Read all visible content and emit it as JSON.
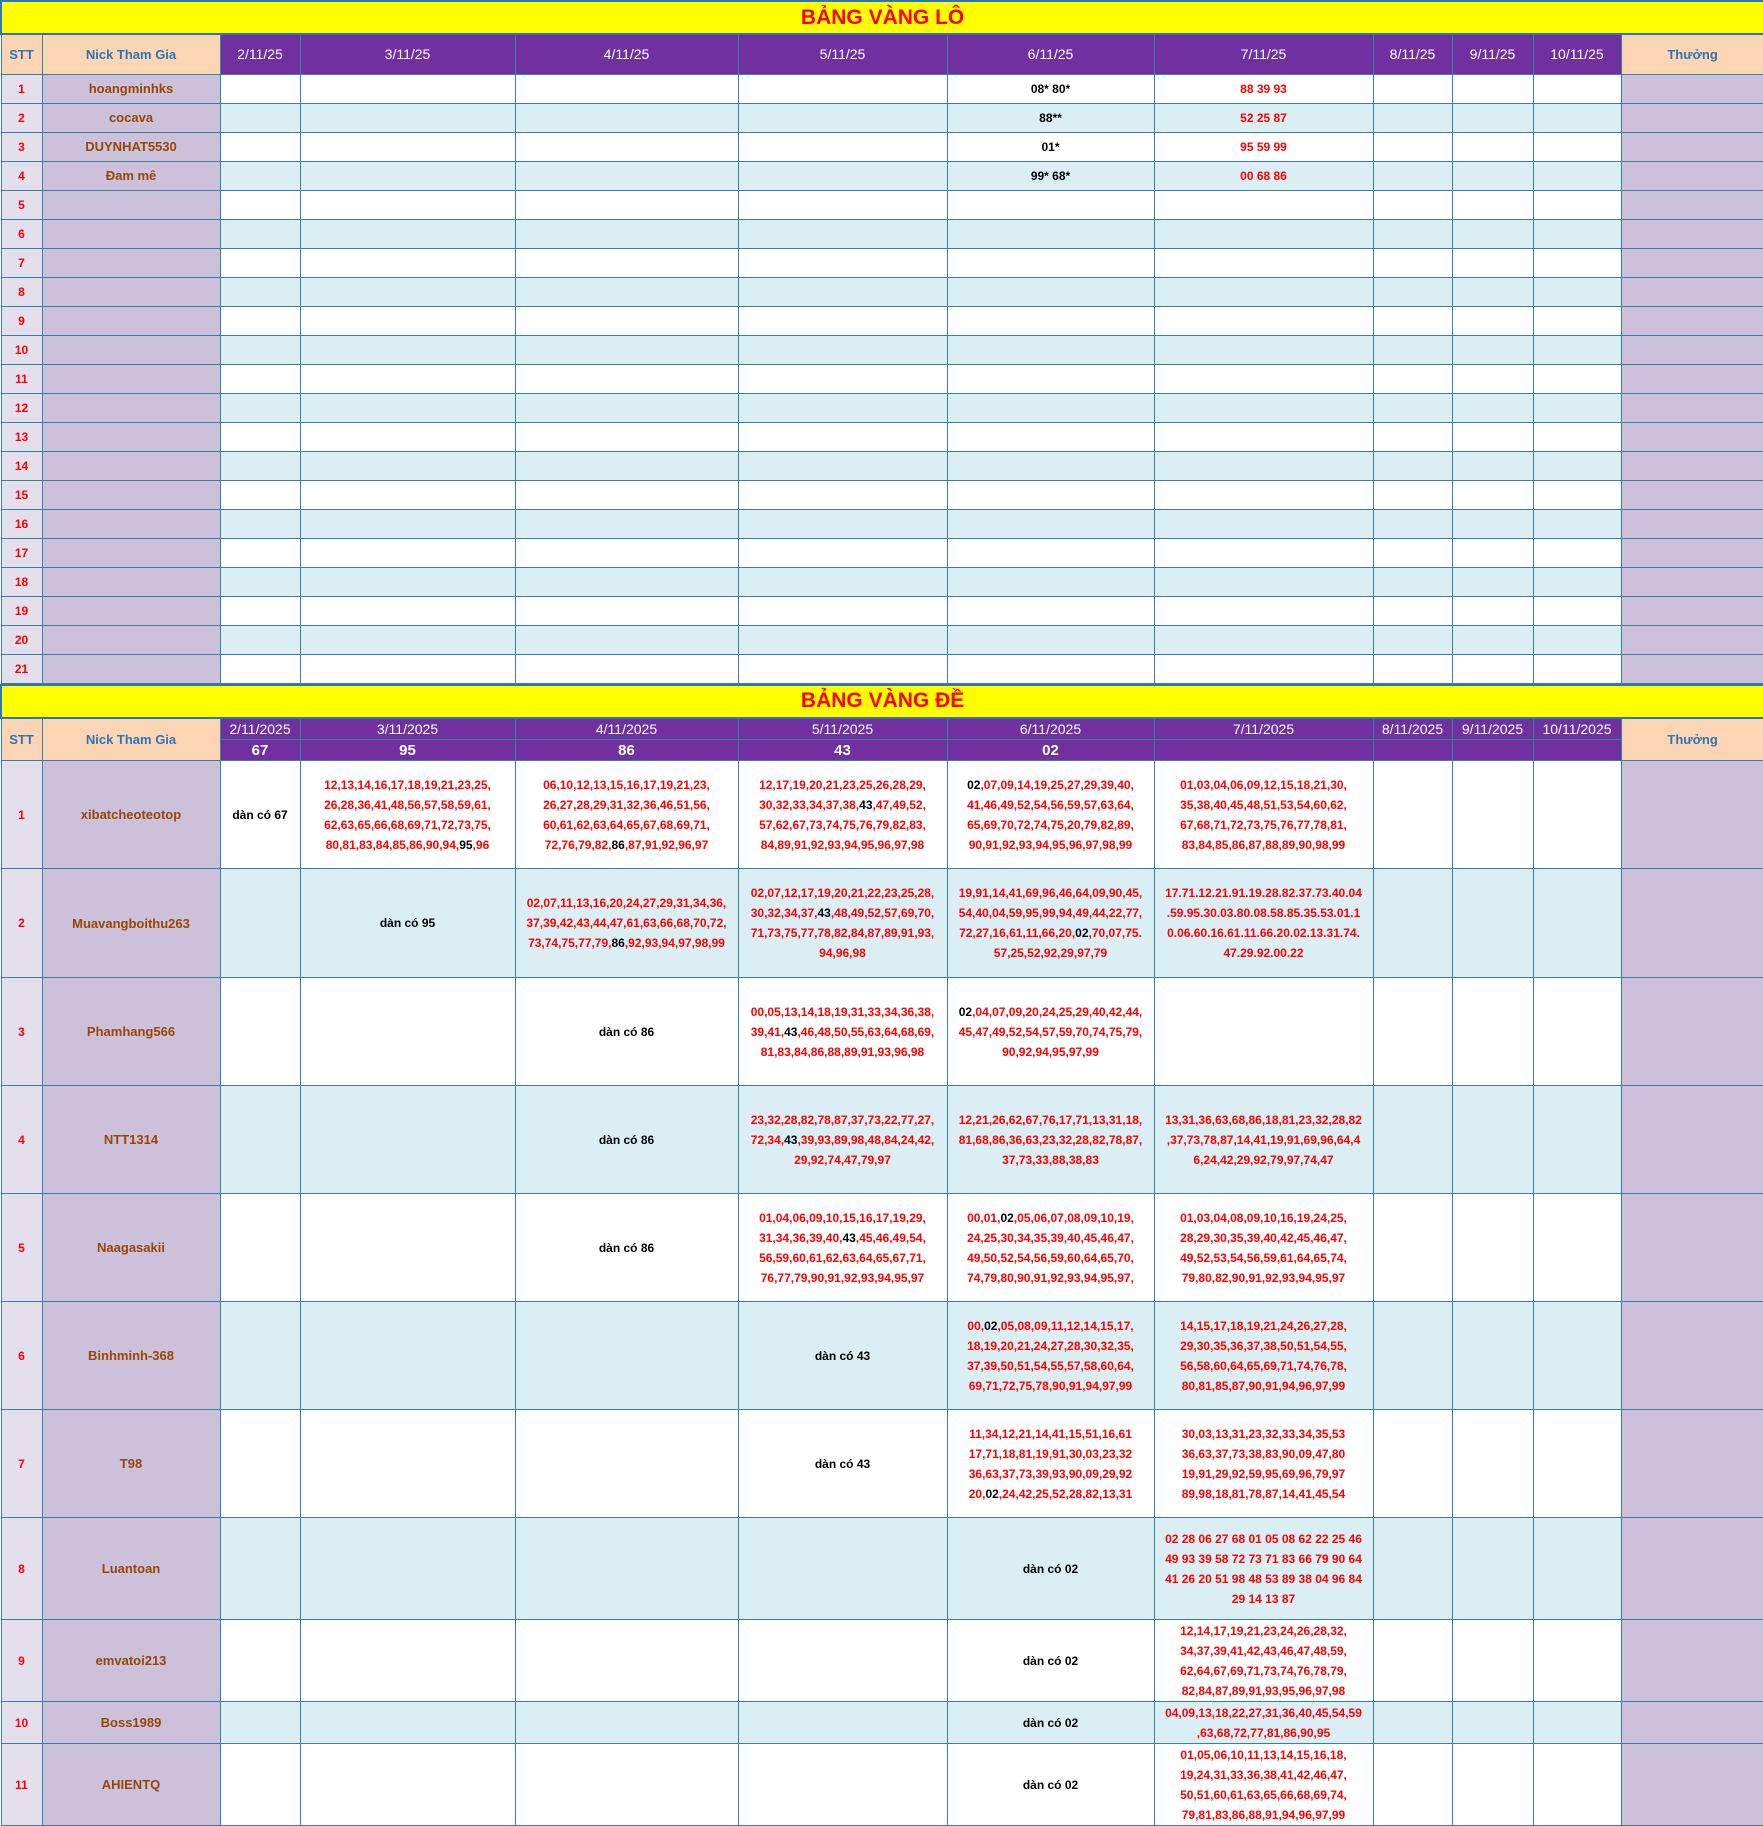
{
  "lo": {
    "title": "BẢNG VÀNG LÔ",
    "headers": [
      "STT",
      "Nick Tham Gia",
      "2/11/25",
      "3/11/25",
      "4/11/25",
      "5/11/25",
      "6/11/25",
      "7/11/25",
      "8/11/25",
      "9/11/25",
      "10/11/25",
      "Thưởng"
    ],
    "rows": [
      {
        "stt": "1",
        "nick": "hoangminhks",
        "d6": "08* 80*",
        "d7": "88 39 93"
      },
      {
        "stt": "2",
        "nick": "cocava",
        "d6": "88**",
        "d7": "52 25 87"
      },
      {
        "stt": "3",
        "nick": "DUYNHAT5530",
        "d6": "01*",
        "d7": "95 59 99"
      },
      {
        "stt": "4",
        "nick": "Đam mê",
        "d6": "99* 68*",
        "d7": "00 68 86"
      },
      {
        "stt": "5"
      },
      {
        "stt": "6"
      },
      {
        "stt": "7"
      },
      {
        "stt": "8"
      },
      {
        "stt": "9"
      },
      {
        "stt": "10"
      },
      {
        "stt": "11"
      },
      {
        "stt": "12"
      },
      {
        "stt": "13"
      },
      {
        "stt": "14"
      },
      {
        "stt": "15"
      },
      {
        "stt": "16"
      },
      {
        "stt": "17"
      },
      {
        "stt": "18"
      },
      {
        "stt": "19"
      },
      {
        "stt": "20"
      },
      {
        "stt": "21"
      }
    ]
  },
  "de": {
    "title": "BẢNG VÀNG ĐỀ",
    "stt_label": "STT",
    "nick_label": "Nick Tham Gia",
    "bonus_label": "Thưởng",
    "dates": [
      "2/11/2025",
      "3/11/2025",
      "4/11/2025",
      "5/11/2025",
      "6/11/2025",
      "7/11/2025",
      "8/11/2025",
      "9/11/2025",
      "10/11/2025"
    ],
    "results": [
      "67",
      "95",
      "86",
      "43",
      "02",
      "",
      "",
      "",
      ""
    ],
    "rows": [
      {
        "stt": "1",
        "nick": "xibatcheoteotop",
        "cells": [
          {
            "text": "dàn có 67"
          },
          {
            "lines": [
              "12,13,14,16,17,18,19,21,23,25,",
              "26,28,36,41,48,56,57,58,59,61,",
              "62,63,65,66,68,69,71,72,73,75,",
              "80,81,83,84,85,86,90,94,95,96"
            ],
            "hit": "95"
          },
          {
            "lines": [
              "06,10,12,13,15,16,17,19,21,23,",
              "26,27,28,29,31,32,36,46,51,56,",
              "60,61,62,63,64,65,67,68,69,71,",
              "72,76,79,82,86,87,91,92,96,97"
            ],
            "hit": "86"
          },
          {
            "lines": [
              "12,17,19,20,21,23,25,26,28,29,",
              "30,32,33,34,37,38,43,47,49,52,",
              "57,62,67,73,74,75,76,79,82,83,",
              "84,89,91,92,93,94,95,96,97,98"
            ],
            "hit": "43"
          },
          {
            "lines": [
              "02,07,09,14,19,25,27,29,39,40,",
              "41,46,49,52,54,56,59,57,63,64,",
              "65,69,70,72,74,75,20,79,82,89,",
              "90,91,92,93,94,95,96,97,98,99"
            ],
            "hit": "02"
          },
          {
            "lines": [
              "01,03,04,06,09,12,15,18,21,30,",
              "35,38,40,45,48,51,53,54,60,62,",
              "67,68,71,72,73,75,76,77,78,81,",
              "83,84,85,86,87,88,89,90,98,99"
            ]
          }
        ]
      },
      {
        "stt": "2",
        "nick": "Muavangboithu263",
        "cells": [
          {},
          {
            "text": "dàn có 95"
          },
          {
            "lines": [
              "02,07,11,13,16,20,24,27,29,31,34,36,",
              "37,39,42,43,44,47,61,63,66,68,70,72,",
              "73,74,75,77,79,86,92,93,94,97,98,99"
            ],
            "hit": "86"
          },
          {
            "lines": [
              "02,07,12,17,19,20,21,22,23,25,28,",
              "30,32,34,37,43,48,49,52,57,69,70,",
              "71,73,75,77,78,82,84,87,89,91,93,",
              "94,96,98"
            ],
            "hit": "43"
          },
          {
            "lines": [
              "19,91,14,41,69,96,46,64,09,90,45,",
              "54,40,04,59,95,99,94,49,44,22,77,",
              "72,27,16,61,11,66,20,02,70,07,75.",
              "57,25,52,92,29,97,79"
            ],
            "hit": "02"
          },
          {
            "lines": [
              "17.71.12.21.91.19.28.82.37.73.40.04",
              ".59.95.30.03.80.08.58.85.35.53.01.1",
              "0.06.60.16.61.11.66.20.02.13.31.74.",
              "47.29.92.00.22"
            ]
          }
        ]
      },
      {
        "stt": "3",
        "nick": "Phamhang566",
        "cells": [
          {},
          {},
          {
            "text": "dàn có 86"
          },
          {
            "lines": [
              "00,05,13,14,18,19,31,33,34,36,38,",
              "39,41,43,46,48,50,55,63,64,68,69,",
              "81,83,84,86,88,89,91,93,96,98"
            ],
            "hit": "43"
          },
          {
            "lines": [
              "02,04,07,09,20,24,25,29,40,42,44,",
              "45,47,49,52,54,57,59,70,74,75,79,",
              "90,92,94,95,97,99"
            ],
            "hit": "02"
          },
          {}
        ]
      },
      {
        "stt": "4",
        "nick": "NTT1314",
        "cells": [
          {},
          {},
          {
            "text": "dàn có 86"
          },
          {
            "lines": [
              "23,32,28,82,78,87,37,73,22,77,27,",
              "72,34,43,39,93,89,98,48,84,24,42,",
              "29,92,74,47,79,97"
            ],
            "hit": "43"
          },
          {
            "lines": [
              "12,21,26,62,67,76,17,71,13,31,18,",
              "81,68,86,36,63,23,32,28,82,78,87,",
              "37,73,33,88,38,83"
            ]
          },
          {
            "lines": [
              "13,31,36,63,68,86,18,81,23,32,28,82",
              ",37,73,78,87,14,41,19,91,69,96,64,4",
              "6,24,42,29,92,79,97,74,47"
            ]
          }
        ]
      },
      {
        "stt": "5",
        "nick": "Naagasakii",
        "cells": [
          {},
          {},
          {
            "text": "dàn có 86"
          },
          {
            "lines": [
              "01,04,06,09,10,15,16,17,19,29,",
              "31,34,36,39,40,43,45,46,49,54,",
              "56,59,60,61,62,63,64,65,67,71,",
              "76,77,79,90,91,92,93,94,95,97"
            ],
            "hit": "43"
          },
          {
            "lines": [
              "00,01,02,05,06,07,08,09,10,19,",
              "24,25,30,34,35,39,40,45,46,47,",
              "49,50,52,54,56,59,60,64,65,70,",
              "74,79,80,90,91,92,93,94,95,97,"
            ],
            "hit": "02"
          },
          {
            "lines": [
              "01,03,04,08,09,10,16,19,24,25,",
              "28,29,30,35,39,40,42,45,46,47,",
              "49,52,53,54,56,59,61,64,65,74,",
              "79,80,82,90,91,92,93,94,95,97"
            ]
          }
        ]
      },
      {
        "stt": "6",
        "nick": "Binhminh-368",
        "cells": [
          {},
          {},
          {},
          {
            "text": "dàn có 43"
          },
          {
            "lines": [
              "00,02,05,08,09,11,12,14,15,17,",
              "18,19,20,21,24,27,28,30,32,35,",
              "37,39,50,51,54,55,57,58,60,64,",
              "69,71,72,75,78,90,91,94,97,99"
            ],
            "hit": "02"
          },
          {
            "lines": [
              "14,15,17,18,19,21,24,26,27,28,",
              "29,30,35,36,37,38,50,51,54,55,",
              "56,58,60,64,65,69,71,74,76,78,",
              "80,81,85,87,90,91,94,96,97,99"
            ]
          }
        ]
      },
      {
        "stt": "7",
        "nick": "T98",
        "cells": [
          {},
          {},
          {},
          {
            "text": "dàn có 43"
          },
          {
            "lines": [
              "11,34,12,21,14,41,15,51,16,61",
              "17,71,18,81,19,91,30,03,23,32",
              "36,63,37,73,39,93,90,09,29,92",
              "20,02,24,42,25,52,28,82,13,31"
            ],
            "hit": "02"
          },
          {
            "lines": [
              "30,03,13,31,23,32,33,34,35,53",
              "36,63,37,73,38,83,90,09,47,80",
              "19,91,29,92,59,95,69,96,79,97",
              "89,98,18,81,78,87,14,41,45,54"
            ]
          }
        ]
      },
      {
        "stt": "8",
        "nick": "Luantoan",
        "cells": [
          {},
          {},
          {},
          {},
          {
            "text": "dàn có 02"
          },
          {
            "lines": [
              "02 28 06 27 68 01 05 08 62 22 25 46",
              "49 93 39 58 72 73 71 83 66 79 90 64",
              "41 26 20 51 98 48 53 89 38 04 96 84",
              "29 14 13 87"
            ]
          }
        ]
      },
      {
        "stt": "9",
        "nick": "emvatoi213",
        "cells": [
          {},
          {},
          {},
          {},
          {
            "text": "dàn có 02"
          },
          {
            "lines": [
              "12,14,17,19,21,23,24,26,28,32,",
              "34,37,39,41,42,43,46,47,48,59,",
              "62,64,67,69,71,73,74,76,78,79,",
              "82,84,87,89,91,93,95,96,97,98"
            ]
          }
        ]
      },
      {
        "stt": "10",
        "nick": "Boss1989",
        "cells": [
          {},
          {},
          {},
          {},
          {
            "text": "dàn có 02"
          },
          {
            "lines": [
              "04,09,13,18,22,27,31,36,40,45,54,59",
              ",63,68,72,77,81,86,90,95"
            ]
          }
        ]
      },
      {
        "stt": "11",
        "nick": "AHIENTQ",
        "cells": [
          {},
          {},
          {},
          {},
          {
            "text": "dàn có 02"
          },
          {
            "lines": [
              "01,05,06,10,11,13,14,15,16,18,",
              "19,24,31,33,36,38,41,42,46,47,",
              "50,51,60,61,63,65,66,68,69,74,",
              "79,81,83,86,88,91,94,96,97,99"
            ]
          }
        ]
      }
    ]
  },
  "colors": {
    "header": "#7030a0",
    "title_bg": "#ffff00",
    "title_text": "#ff0000",
    "numbers": "#ff0000",
    "hit": "#000000",
    "stripe": "#daeef3",
    "name_bg": "#ccc0da",
    "border": "#31849b"
  }
}
